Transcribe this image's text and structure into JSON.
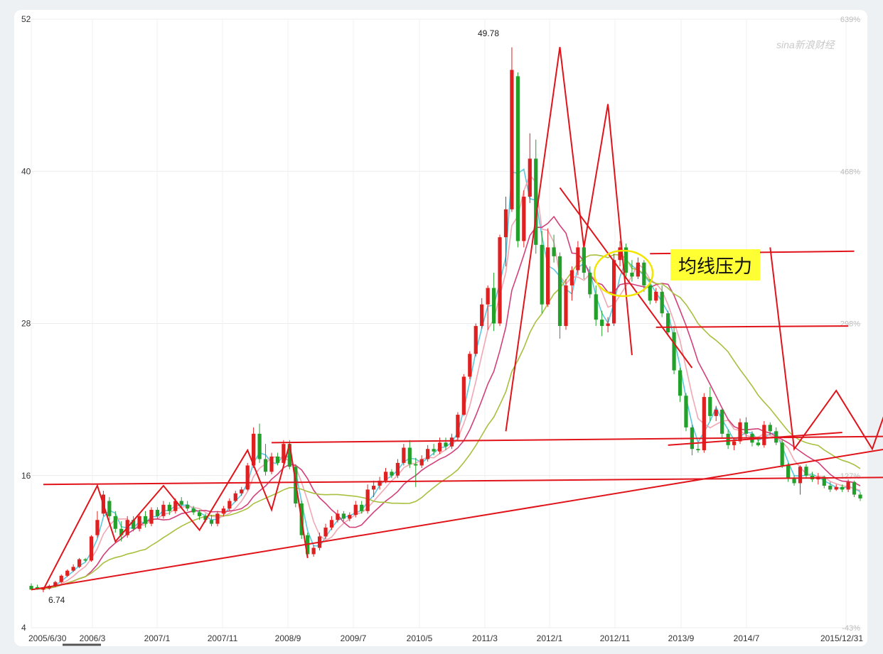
{
  "chart_data": {
    "type": "candlestick",
    "title": "",
    "y_ticks": [
      "52",
      "40",
      "28",
      "16",
      "4"
    ],
    "y_tick_values": [
      52,
      40,
      28,
      16,
      4
    ],
    "ylim": [
      4,
      52
    ],
    "right_ticks": [
      "639%",
      "468%",
      "298%",
      "127%",
      "-43%"
    ],
    "x_ticks": [
      "2005/6/30",
      "2006/3",
      "2007/1",
      "2007/11",
      "2008/9",
      "2009/7",
      "2010/5",
      "2011/3",
      "2012/1",
      "2012/11",
      "2013/9",
      "2014/7",
      "2015/12/31"
    ],
    "high_label": "49.78",
    "high_value": 49.78,
    "low_label": "6.74",
    "low_value": 6.74,
    "watermark": "sina新浪财经",
    "annotation": "均线压力",
    "grid": true,
    "colors": {
      "up": "#e02020",
      "down": "#22a02a",
      "ma5": "#5bc8e0",
      "ma10": "#f2a7b4",
      "ma20": "#d2407a",
      "ma30": "#a8c040",
      "trend": "#e0141a",
      "circle": "#f2e600"
    },
    "candles": [
      {
        "o": 7.3,
        "h": 7.5,
        "l": 7.1,
        "c": 7.0
      },
      {
        "o": 7.2,
        "h": 7.4,
        "l": 7.0,
        "c": 7.1
      },
      {
        "o": 7.0,
        "h": 7.2,
        "l": 6.8,
        "c": 7.1
      },
      {
        "o": 7.1,
        "h": 7.4,
        "l": 7.0,
        "c": 7.3
      },
      {
        "o": 7.3,
        "h": 7.7,
        "l": 7.2,
        "c": 7.6
      },
      {
        "o": 7.6,
        "h": 8.2,
        "l": 7.5,
        "c": 8.1
      },
      {
        "o": 8.1,
        "h": 8.6,
        "l": 8.0,
        "c": 8.5
      },
      {
        "o": 8.5,
        "h": 9.0,
        "l": 8.4,
        "c": 8.8
      },
      {
        "o": 8.8,
        "h": 9.5,
        "l": 8.7,
        "c": 9.4
      },
      {
        "o": 9.4,
        "h": 9.5,
        "l": 9.2,
        "c": 9.3
      },
      {
        "o": 9.3,
        "h": 11.3,
        "l": 9.2,
        "c": 11.2
      },
      {
        "o": 11.3,
        "h": 13.2,
        "l": 11.1,
        "c": 12.5
      },
      {
        "o": 13.0,
        "h": 14.8,
        "l": 12.8,
        "c": 14.5
      },
      {
        "o": 14.0,
        "h": 14.3,
        "l": 12.5,
        "c": 12.8
      },
      {
        "o": 12.8,
        "h": 13.2,
        "l": 11.5,
        "c": 11.8
      },
      {
        "o": 11.8,
        "h": 12.4,
        "l": 10.8,
        "c": 11.3
      },
      {
        "o": 11.3,
        "h": 12.8,
        "l": 11.1,
        "c": 12.5
      },
      {
        "o": 12.5,
        "h": 12.8,
        "l": 11.6,
        "c": 11.8
      },
      {
        "o": 11.8,
        "h": 13.0,
        "l": 11.6,
        "c": 12.8
      },
      {
        "o": 12.8,
        "h": 13.2,
        "l": 11.9,
        "c": 12.2
      },
      {
        "o": 12.2,
        "h": 13.5,
        "l": 12.0,
        "c": 13.3
      },
      {
        "o": 13.3,
        "h": 13.5,
        "l": 12.6,
        "c": 12.8
      },
      {
        "o": 12.8,
        "h": 14.0,
        "l": 12.6,
        "c": 13.7
      },
      {
        "o": 13.7,
        "h": 13.9,
        "l": 12.9,
        "c": 13.2
      },
      {
        "o": 13.2,
        "h": 14.2,
        "l": 13.0,
        "c": 14.0
      },
      {
        "o": 14.0,
        "h": 14.3,
        "l": 13.5,
        "c": 13.7
      },
      {
        "o": 13.7,
        "h": 14.0,
        "l": 13.2,
        "c": 13.4
      },
      {
        "o": 13.4,
        "h": 13.6,
        "l": 12.9,
        "c": 13.1
      },
      {
        "o": 13.1,
        "h": 13.3,
        "l": 12.5,
        "c": 12.8
      },
      {
        "o": 12.8,
        "h": 13.0,
        "l": 12.3,
        "c": 12.5
      },
      {
        "o": 12.5,
        "h": 12.9,
        "l": 12.0,
        "c": 12.2
      },
      {
        "o": 12.2,
        "h": 13.2,
        "l": 12.0,
        "c": 13.0
      },
      {
        "o": 13.0,
        "h": 13.6,
        "l": 12.8,
        "c": 13.4
      },
      {
        "o": 13.4,
        "h": 14.2,
        "l": 13.2,
        "c": 14.0
      },
      {
        "o": 14.0,
        "h": 14.8,
        "l": 13.9,
        "c": 14.6
      },
      {
        "o": 14.6,
        "h": 15.1,
        "l": 14.4,
        "c": 14.9
      },
      {
        "o": 14.9,
        "h": 17.0,
        "l": 14.8,
        "c": 16.8
      },
      {
        "o": 16.8,
        "h": 19.8,
        "l": 16.6,
        "c": 19.3
      },
      {
        "o": 19.3,
        "h": 20.1,
        "l": 17.0,
        "c": 17.3
      },
      {
        "o": 17.3,
        "h": 18.5,
        "l": 16.0,
        "c": 16.3
      },
      {
        "o": 16.3,
        "h": 17.8,
        "l": 16.1,
        "c": 17.5
      },
      {
        "o": 17.5,
        "h": 17.8,
        "l": 16.8,
        "c": 17.0
      },
      {
        "o": 17.0,
        "h": 18.8,
        "l": 16.8,
        "c": 18.5
      },
      {
        "o": 18.5,
        "h": 18.8,
        "l": 16.5,
        "c": 16.7
      },
      {
        "o": 16.7,
        "h": 16.9,
        "l": 13.5,
        "c": 13.8
      },
      {
        "o": 13.8,
        "h": 14.0,
        "l": 11.0,
        "c": 11.3
      },
      {
        "o": 11.3,
        "h": 11.5,
        "l": 9.5,
        "c": 9.8
      },
      {
        "o": 9.8,
        "h": 10.5,
        "l": 9.6,
        "c": 10.3
      },
      {
        "o": 10.3,
        "h": 11.5,
        "l": 10.1,
        "c": 11.2
      },
      {
        "o": 11.2,
        "h": 12.2,
        "l": 11.0,
        "c": 11.9
      },
      {
        "o": 11.9,
        "h": 12.8,
        "l": 11.7,
        "c": 12.5
      },
      {
        "o": 12.5,
        "h": 13.3,
        "l": 12.3,
        "c": 13.0
      },
      {
        "o": 13.0,
        "h": 13.2,
        "l": 12.4,
        "c": 12.6
      },
      {
        "o": 12.6,
        "h": 13.1,
        "l": 12.4,
        "c": 12.9
      },
      {
        "o": 12.9,
        "h": 14.0,
        "l": 12.7,
        "c": 13.7
      },
      {
        "o": 13.7,
        "h": 14.0,
        "l": 13.0,
        "c": 13.2
      },
      {
        "o": 13.2,
        "h": 15.3,
        "l": 13.0,
        "c": 14.9
      },
      {
        "o": 14.9,
        "h": 15.6,
        "l": 14.3,
        "c": 15.2
      },
      {
        "o": 15.2,
        "h": 15.9,
        "l": 14.9,
        "c": 15.6
      },
      {
        "o": 15.6,
        "h": 16.6,
        "l": 15.4,
        "c": 16.3
      },
      {
        "o": 16.3,
        "h": 16.5,
        "l": 15.8,
        "c": 16.0
      },
      {
        "o": 16.0,
        "h": 17.3,
        "l": 15.8,
        "c": 17.0
      },
      {
        "o": 17.0,
        "h": 18.5,
        "l": 16.8,
        "c": 18.2
      },
      {
        "o": 18.2,
        "h": 18.8,
        "l": 16.6,
        "c": 16.9
      },
      {
        "o": 16.9,
        "h": 17.4,
        "l": 15.1,
        "c": 16.8
      },
      {
        "o": 16.8,
        "h": 17.6,
        "l": 16.6,
        "c": 17.3
      },
      {
        "o": 17.3,
        "h": 18.4,
        "l": 17.1,
        "c": 18.1
      },
      {
        "o": 18.1,
        "h": 18.5,
        "l": 17.6,
        "c": 17.9
      },
      {
        "o": 17.9,
        "h": 19.0,
        "l": 17.7,
        "c": 18.6
      },
      {
        "o": 18.6,
        "h": 19.0,
        "l": 18.0,
        "c": 18.3
      },
      {
        "o": 18.3,
        "h": 19.3,
        "l": 18.1,
        "c": 19.0
      },
      {
        "o": 19.0,
        "h": 21.0,
        "l": 18.8,
        "c": 20.8
      },
      {
        "o": 20.8,
        "h": 24.0,
        "l": 20.7,
        "c": 23.8
      },
      {
        "o": 23.8,
        "h": 25.8,
        "l": 23.6,
        "c": 25.6
      },
      {
        "o": 25.6,
        "h": 28.0,
        "l": 25.4,
        "c": 27.8
      },
      {
        "o": 27.8,
        "h": 30.0,
        "l": 27.6,
        "c": 29.5
      },
      {
        "o": 29.5,
        "h": 31.0,
        "l": 27.5,
        "c": 30.8
      },
      {
        "o": 30.8,
        "h": 32.0,
        "l": 27.4,
        "c": 28.0
      },
      {
        "o": 28.0,
        "h": 35.0,
        "l": 27.8,
        "c": 34.8
      },
      {
        "o": 34.8,
        "h": 38.0,
        "l": 32.5,
        "c": 37.0
      },
      {
        "o": 37.0,
        "h": 49.78,
        "l": 36.8,
        "c": 48.0
      },
      {
        "o": 47.5,
        "h": 47.8,
        "l": 34.0,
        "c": 34.5
      },
      {
        "o": 34.5,
        "h": 38.5,
        "l": 34.0,
        "c": 38.0
      },
      {
        "o": 38.0,
        "h": 43.0,
        "l": 37.5,
        "c": 41.0
      },
      {
        "o": 41.0,
        "h": 42.5,
        "l": 33.5,
        "c": 34.2
      },
      {
        "o": 34.2,
        "h": 35.3,
        "l": 28.8,
        "c": 29.5
      },
      {
        "o": 29.5,
        "h": 35.5,
        "l": 29.3,
        "c": 34.0
      },
      {
        "o": 34.0,
        "h": 35.0,
        "l": 32.8,
        "c": 33.3
      },
      {
        "o": 33.3,
        "h": 33.6,
        "l": 26.8,
        "c": 27.8
      },
      {
        "o": 27.8,
        "h": 31.5,
        "l": 27.5,
        "c": 31.0
      },
      {
        "o": 31.0,
        "h": 32.5,
        "l": 29.8,
        "c": 32.2
      },
      {
        "o": 32.2,
        "h": 34.5,
        "l": 31.8,
        "c": 34.0
      },
      {
        "o": 34.0,
        "h": 34.5,
        "l": 31.5,
        "c": 32.0
      },
      {
        "o": 32.0,
        "h": 32.5,
        "l": 30.0,
        "c": 30.3
      },
      {
        "o": 30.3,
        "h": 31.0,
        "l": 27.8,
        "c": 28.3
      },
      {
        "o": 28.3,
        "h": 29.0,
        "l": 27.0,
        "c": 27.8
      },
      {
        "o": 27.8,
        "h": 28.5,
        "l": 27.3,
        "c": 28.0
      },
      {
        "o": 28.0,
        "h": 33.5,
        "l": 27.8,
        "c": 33.0
      },
      {
        "o": 33.0,
        "h": 34.5,
        "l": 32.5,
        "c": 34.0
      },
      {
        "o": 34.0,
        "h": 34.3,
        "l": 31.5,
        "c": 32.0
      },
      {
        "o": 32.0,
        "h": 33.0,
        "l": 31.3,
        "c": 31.7
      },
      {
        "o": 31.7,
        "h": 33.2,
        "l": 31.5,
        "c": 32.8
      },
      {
        "o": 32.8,
        "h": 33.0,
        "l": 30.5,
        "c": 31.0
      },
      {
        "o": 31.0,
        "h": 31.5,
        "l": 29.5,
        "c": 29.8
      },
      {
        "o": 29.8,
        "h": 30.8,
        "l": 29.6,
        "c": 30.5
      },
      {
        "o": 30.5,
        "h": 31.0,
        "l": 28.5,
        "c": 28.8
      },
      {
        "o": 28.8,
        "h": 29.0,
        "l": 27.0,
        "c": 27.3
      },
      {
        "o": 27.3,
        "h": 27.8,
        "l": 24.0,
        "c": 24.3
      },
      {
        "o": 24.3,
        "h": 24.5,
        "l": 21.8,
        "c": 22.3
      },
      {
        "o": 22.3,
        "h": 22.5,
        "l": 19.5,
        "c": 19.8
      },
      {
        "o": 19.8,
        "h": 20.0,
        "l": 17.6,
        "c": 18.1
      },
      {
        "o": 18.1,
        "h": 18.5,
        "l": 17.8,
        "c": 18.0
      },
      {
        "o": 18.0,
        "h": 22.5,
        "l": 17.8,
        "c": 22.2
      },
      {
        "o": 22.2,
        "h": 23.0,
        "l": 20.3,
        "c": 20.7
      },
      {
        "o": 20.7,
        "h": 21.5,
        "l": 20.3,
        "c": 21.2
      },
      {
        "o": 21.2,
        "h": 21.3,
        "l": 19.0,
        "c": 19.3
      },
      {
        "o": 19.3,
        "h": 19.6,
        "l": 18.1,
        "c": 18.4
      },
      {
        "o": 18.4,
        "h": 19.0,
        "l": 18.0,
        "c": 18.7
      },
      {
        "o": 18.7,
        "h": 20.5,
        "l": 18.5,
        "c": 20.2
      },
      {
        "o": 20.2,
        "h": 20.6,
        "l": 19.0,
        "c": 19.3
      },
      {
        "o": 19.3,
        "h": 19.5,
        "l": 18.3,
        "c": 18.6
      },
      {
        "o": 18.6,
        "h": 19.0,
        "l": 18.3,
        "c": 18.4
      },
      {
        "o": 18.4,
        "h": 20.3,
        "l": 18.2,
        "c": 20.0
      },
      {
        "o": 20.0,
        "h": 20.2,
        "l": 19.2,
        "c": 19.5
      },
      {
        "o": 19.5,
        "h": 19.8,
        "l": 18.4,
        "c": 18.6
      },
      {
        "o": 18.6,
        "h": 18.8,
        "l": 16.6,
        "c": 16.8
      },
      {
        "o": 16.8,
        "h": 17.0,
        "l": 15.5,
        "c": 15.8
      },
      {
        "o": 15.8,
        "h": 16.0,
        "l": 15.2,
        "c": 15.4
      },
      {
        "o": 15.4,
        "h": 16.8,
        "l": 14.5,
        "c": 16.7
      },
      {
        "o": 16.7,
        "h": 16.9,
        "l": 15.8,
        "c": 16.0
      },
      {
        "o": 16.0,
        "h": 16.3,
        "l": 15.5,
        "c": 15.7
      },
      {
        "o": 15.7,
        "h": 16.2,
        "l": 15.3,
        "c": 15.9
      },
      {
        "o": 15.9,
        "h": 16.0,
        "l": 15.0,
        "c": 15.2
      },
      {
        "o": 15.2,
        "h": 15.5,
        "l": 14.7,
        "c": 14.9
      },
      {
        "o": 14.9,
        "h": 15.3,
        "l": 14.8,
        "c": 15.1
      },
      {
        "o": 15.1,
        "h": 15.3,
        "l": 14.7,
        "c": 14.9
      },
      {
        "o": 14.9,
        "h": 15.7,
        "l": 14.7,
        "c": 15.5
      },
      {
        "o": 15.5,
        "h": 15.6,
        "l": 14.3,
        "c": 14.5
      },
      {
        "o": 14.5,
        "h": 14.7,
        "l": 14.0,
        "c": 14.2
      }
    ]
  }
}
